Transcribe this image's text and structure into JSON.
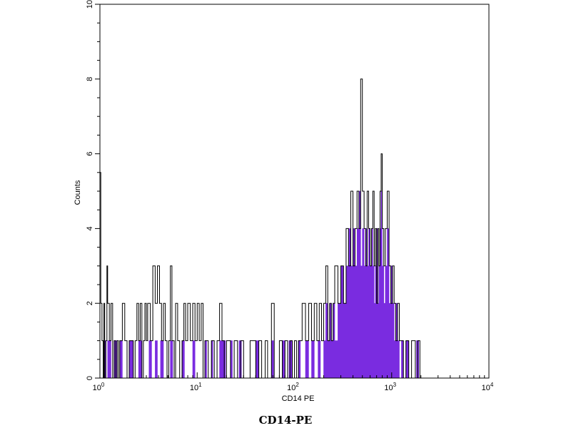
{
  "caption": "CD14-PE",
  "chart_data": {
    "type": "histogram",
    "xlabel": "CD14 PE",
    "ylabel": "Counts",
    "x_scale": "log",
    "xlim": [
      1,
      10000
    ],
    "ylim": [
      0,
      10
    ],
    "x_tick_labels": [
      {
        "value": 1,
        "base": "10",
        "exp": "0"
      },
      {
        "value": 10,
        "base": "10",
        "exp": "1"
      },
      {
        "value": 100,
        "base": "10",
        "exp": "2"
      },
      {
        "value": 1000,
        "base": "10",
        "exp": "3"
      },
      {
        "value": 10000,
        "base": "10",
        "exp": "4"
      }
    ],
    "y_ticks": [
      0,
      2,
      4,
      6,
      8,
      10
    ],
    "grid": false,
    "series": [
      {
        "color": "#000000",
        "style": "outline",
        "points": [
          [
            1.0,
            5.5
          ],
          [
            1.02,
            2
          ],
          [
            1.05,
            1
          ],
          [
            1.08,
            0
          ],
          [
            1.1,
            2
          ],
          [
            1.12,
            0
          ],
          [
            1.15,
            1
          ],
          [
            1.18,
            3
          ],
          [
            1.2,
            2
          ],
          [
            1.25,
            1
          ],
          [
            1.3,
            2
          ],
          [
            1.35,
            0
          ],
          [
            1.4,
            1
          ],
          [
            1.45,
            0
          ],
          [
            1.5,
            1
          ],
          [
            1.55,
            0
          ],
          [
            1.6,
            1
          ],
          [
            1.7,
            2
          ],
          [
            1.8,
            1
          ],
          [
            1.9,
            0
          ],
          [
            2.0,
            1
          ],
          [
            2.1,
            1
          ],
          [
            2.2,
            0
          ],
          [
            2.3,
            1
          ],
          [
            2.4,
            2
          ],
          [
            2.5,
            1
          ],
          [
            2.6,
            2
          ],
          [
            2.7,
            0
          ],
          [
            2.8,
            1
          ],
          [
            2.9,
            2
          ],
          [
            3.0,
            1
          ],
          [
            3.1,
            2
          ],
          [
            3.3,
            1
          ],
          [
            3.5,
            3
          ],
          [
            3.7,
            2
          ],
          [
            3.9,
            3
          ],
          [
            4.1,
            2
          ],
          [
            4.3,
            1
          ],
          [
            4.5,
            2
          ],
          [
            4.7,
            1
          ],
          [
            4.9,
            0
          ],
          [
            5.1,
            1
          ],
          [
            5.3,
            3
          ],
          [
            5.5,
            1
          ],
          [
            5.8,
            0
          ],
          [
            6.0,
            2
          ],
          [
            6.3,
            1
          ],
          [
            6.6,
            0
          ],
          [
            7.0,
            1
          ],
          [
            7.3,
            2
          ],
          [
            7.6,
            1
          ],
          [
            8.0,
            2
          ],
          [
            8.5,
            1
          ],
          [
            9.0,
            2
          ],
          [
            9.5,
            1
          ],
          [
            10.0,
            2
          ],
          [
            10.5,
            1
          ],
          [
            11.0,
            2
          ],
          [
            11.5,
            0
          ],
          [
            12.0,
            1
          ],
          [
            13.0,
            0
          ],
          [
            14.0,
            1
          ],
          [
            15.0,
            0
          ],
          [
            16.0,
            1
          ],
          [
            17.0,
            2
          ],
          [
            18.0,
            1
          ],
          [
            19.0,
            0
          ],
          [
            20.0,
            1
          ],
          [
            22.0,
            0
          ],
          [
            24.0,
            1
          ],
          [
            26.0,
            0
          ],
          [
            28.0,
            1
          ],
          [
            30.0,
            0
          ],
          [
            35.0,
            1
          ],
          [
            40.0,
            0
          ],
          [
            43.0,
            1
          ],
          [
            46.0,
            0
          ],
          [
            50.0,
            1
          ],
          [
            53.0,
            0
          ],
          [
            58.0,
            2
          ],
          [
            62.0,
            0
          ],
          [
            70.0,
            1
          ],
          [
            75.0,
            0
          ],
          [
            80.0,
            1
          ],
          [
            85.0,
            0
          ],
          [
            90.0,
            1
          ],
          [
            95.0,
            0
          ],
          [
            100.0,
            1
          ],
          [
            105.0,
            0
          ],
          [
            110.0,
            1
          ],
          [
            120.0,
            2
          ],
          [
            130.0,
            1
          ],
          [
            140.0,
            2
          ],
          [
            150.0,
            1
          ],
          [
            160.0,
            2
          ],
          [
            170.0,
            1
          ],
          [
            180.0,
            2
          ],
          [
            190.0,
            1
          ],
          [
            200.0,
            2
          ],
          [
            210.0,
            3
          ],
          [
            220.0,
            1
          ],
          [
            230.0,
            2
          ],
          [
            240.0,
            1
          ],
          [
            250.0,
            2
          ],
          [
            260.0,
            3
          ],
          [
            280.0,
            2
          ],
          [
            300.0,
            3
          ],
          [
            320.0,
            2
          ],
          [
            340.0,
            4
          ],
          [
            360.0,
            3
          ],
          [
            380.0,
            5
          ],
          [
            400.0,
            3
          ],
          [
            420.0,
            4
          ],
          [
            440.0,
            5
          ],
          [
            460.0,
            4
          ],
          [
            480.0,
            8
          ],
          [
            500.0,
            5
          ],
          [
            520.0,
            4
          ],
          [
            540.0,
            3
          ],
          [
            560.0,
            5
          ],
          [
            580.0,
            4
          ],
          [
            600.0,
            3
          ],
          [
            620.0,
            4
          ],
          [
            640.0,
            5
          ],
          [
            660.0,
            3
          ],
          [
            680.0,
            4
          ],
          [
            700.0,
            2
          ],
          [
            720.0,
            4
          ],
          [
            740.0,
            3
          ],
          [
            760.0,
            5
          ],
          [
            780.0,
            6
          ],
          [
            800.0,
            4
          ],
          [
            830.0,
            3
          ],
          [
            860.0,
            4
          ],
          [
            900.0,
            5
          ],
          [
            940.0,
            3
          ],
          [
            980.0,
            2
          ],
          [
            1020.0,
            3
          ],
          [
            1060.0,
            2
          ],
          [
            1100.0,
            1
          ],
          [
            1150.0,
            2
          ],
          [
            1200.0,
            1
          ],
          [
            1260.0,
            1
          ],
          [
            1320.0,
            0
          ],
          [
            1400.0,
            1
          ],
          [
            1500.0,
            0
          ],
          [
            1600.0,
            1
          ],
          [
            1750.0,
            0
          ],
          [
            1850.0,
            1
          ],
          [
            1950.0,
            0
          ]
        ]
      },
      {
        "color": "#7a2ce0",
        "style": "filled",
        "points": [
          [
            1.1,
            1
          ],
          [
            1.15,
            0
          ],
          [
            1.2,
            1
          ],
          [
            1.3,
            0
          ],
          [
            1.4,
            1
          ],
          [
            1.5,
            0
          ],
          [
            1.6,
            1
          ],
          [
            1.7,
            0
          ],
          [
            1.8,
            0
          ],
          [
            2.0,
            1
          ],
          [
            2.2,
            0
          ],
          [
            2.5,
            1
          ],
          [
            2.7,
            0
          ],
          [
            2.9,
            0
          ],
          [
            3.2,
            1
          ],
          [
            3.4,
            0
          ],
          [
            3.7,
            1
          ],
          [
            3.9,
            0
          ],
          [
            4.2,
            1
          ],
          [
            4.5,
            0
          ],
          [
            4.9,
            0
          ],
          [
            5.3,
            1
          ],
          [
            5.6,
            0
          ],
          [
            6.0,
            0
          ],
          [
            7.0,
            1
          ],
          [
            7.4,
            0
          ],
          [
            8.0,
            0
          ],
          [
            9.0,
            1
          ],
          [
            9.5,
            0
          ],
          [
            10.0,
            0
          ],
          [
            12.0,
            1
          ],
          [
            12.5,
            0
          ],
          [
            14.0,
            1
          ],
          [
            14.5,
            0
          ],
          [
            17.0,
            1
          ],
          [
            18.5,
            1
          ],
          [
            19.5,
            0
          ],
          [
            22.0,
            1
          ],
          [
            23.0,
            0
          ],
          [
            27.0,
            1
          ],
          [
            28.5,
            0
          ],
          [
            35.0,
            0
          ],
          [
            40.0,
            1
          ],
          [
            43.0,
            0
          ],
          [
            50.0,
            0
          ],
          [
            58.0,
            1
          ],
          [
            61.0,
            0
          ],
          [
            75.0,
            1
          ],
          [
            80.0,
            0
          ],
          [
            88.0,
            1
          ],
          [
            95.0,
            0
          ],
          [
            110.0,
            1
          ],
          [
            115.0,
            0
          ],
          [
            130.0,
            1
          ],
          [
            140.0,
            0
          ],
          [
            150.0,
            1
          ],
          [
            160.0,
            0
          ],
          [
            175.0,
            1
          ],
          [
            185.0,
            0
          ],
          [
            200.0,
            1
          ],
          [
            210.0,
            2
          ],
          [
            220.0,
            1
          ],
          [
            230.0,
            2
          ],
          [
            240.0,
            1
          ],
          [
            250.0,
            2
          ],
          [
            260.0,
            1
          ],
          [
            280.0,
            2
          ],
          [
            300.0,
            3
          ],
          [
            320.0,
            2
          ],
          [
            340.0,
            3
          ],
          [
            360.0,
            4
          ],
          [
            380.0,
            3
          ],
          [
            400.0,
            4
          ],
          [
            420.0,
            3
          ],
          [
            440.0,
            4
          ],
          [
            460.0,
            5
          ],
          [
            480.0,
            3
          ],
          [
            500.0,
            4
          ],
          [
            520.0,
            3
          ],
          [
            540.0,
            4
          ],
          [
            560.0,
            3
          ],
          [
            580.0,
            4
          ],
          [
            600.0,
            3
          ],
          [
            620.0,
            4
          ],
          [
            640.0,
            3
          ],
          [
            660.0,
            2
          ],
          [
            680.0,
            3
          ],
          [
            700.0,
            4
          ],
          [
            720.0,
            2
          ],
          [
            740.0,
            3
          ],
          [
            760.0,
            4
          ],
          [
            780.0,
            5
          ],
          [
            800.0,
            3
          ],
          [
            830.0,
            2
          ],
          [
            860.0,
            3
          ],
          [
            900.0,
            4
          ],
          [
            940.0,
            2
          ],
          [
            980.0,
            3
          ],
          [
            1020.0,
            2
          ],
          [
            1060.0,
            1
          ],
          [
            1100.0,
            2
          ],
          [
            1150.0,
            1
          ],
          [
            1200.0,
            0
          ],
          [
            1260.0,
            1
          ],
          [
            1320.0,
            0
          ],
          [
            1400.0,
            1
          ],
          [
            1500.0,
            0
          ],
          [
            1600.0,
            0
          ],
          [
            1800.0,
            1
          ],
          [
            1900.0,
            0
          ]
        ]
      }
    ]
  }
}
